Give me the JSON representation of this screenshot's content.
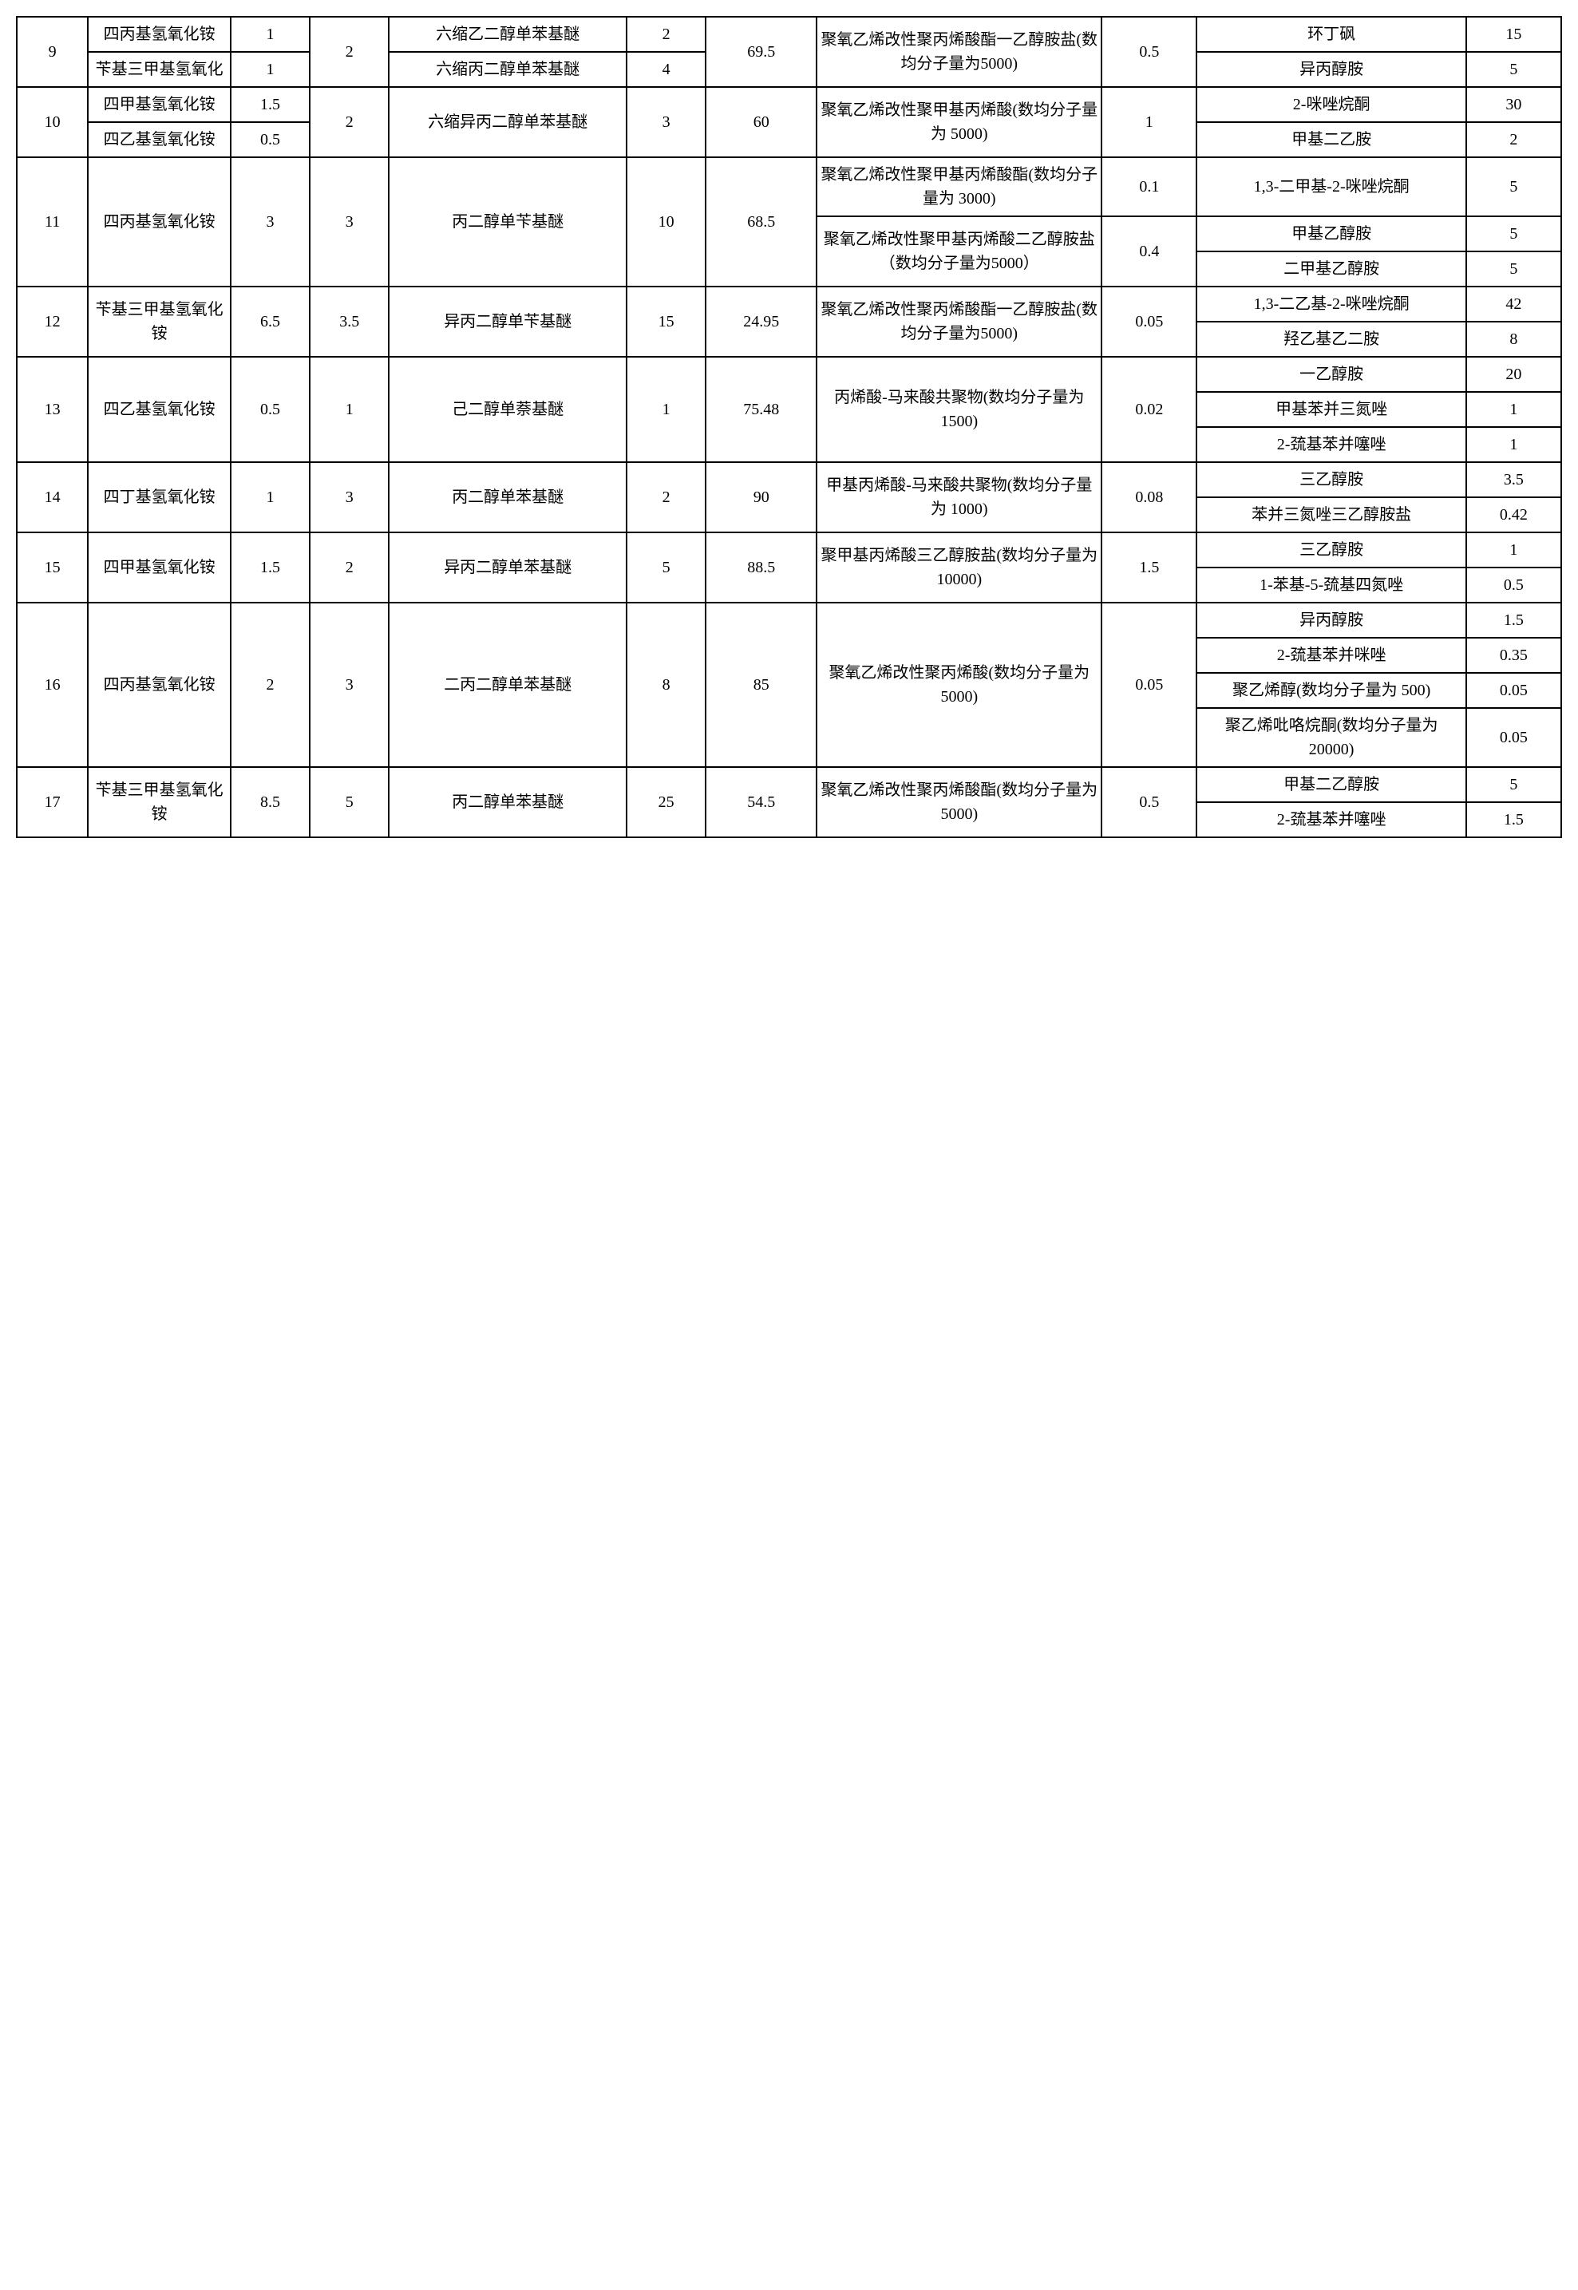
{
  "rows": {
    "r9": {
      "id": "9",
      "comp1a": "四丙基氢氧化铵",
      "v1a": "1",
      "comp1b": "苄基三甲基氢氧化",
      "v1b": "1",
      "v2": "2",
      "comp2a": "六缩乙二醇单苯基醚",
      "v3a": "2",
      "comp2b": "六缩丙二醇单苯基醚",
      "v3b": "4",
      "v4": "69.5",
      "comp3": "聚氧乙烯改性聚丙烯酸酯一乙醇胺盐(数均分子量为5000)",
      "v5": "0.5",
      "comp4a": "环丁砜",
      "v6a": "15",
      "comp4b": "异丙醇胺",
      "v6b": "5"
    },
    "r10": {
      "id": "10",
      "comp1a": "四甲基氢氧化铵",
      "v1a": "1.5",
      "comp1b": "四乙基氢氧化铵",
      "v1b": "0.5",
      "v2": "2",
      "comp2": "六缩异丙二醇单苯基醚",
      "v3": "3",
      "v4": "60",
      "comp3": "聚氧乙烯改性聚甲基丙烯酸(数均分子量为 5000)",
      "v5": "1",
      "comp4a": "2-咪唑烷酮",
      "v6a": "30",
      "comp4b": "甲基二乙胺",
      "v6b": "2"
    },
    "r11": {
      "id": "11",
      "comp1": "四丙基氢氧化铵",
      "v1": "3",
      "v2": "3",
      "comp2": "丙二醇单苄基醚",
      "v3": "10",
      "v4": "68.5",
      "comp3a": "聚氧乙烯改性聚甲基丙烯酸酯(数均分子量为 3000)",
      "v5a": "0.1",
      "comp3b": "聚氧乙烯改性聚甲基丙烯酸二乙醇胺盐（数均分子量为5000）",
      "v5b": "0.4",
      "comp4a": "1,3-二甲基-2-咪唑烷酮",
      "v6a": "5",
      "comp4b": "甲基乙醇胺",
      "v6b": "5",
      "comp4c": "二甲基乙醇胺",
      "v6c": "5"
    },
    "r12": {
      "id": "12",
      "comp1": "苄基三甲基氢氧化铵",
      "v1": "6.5",
      "v2": "3.5",
      "comp2": "异丙二醇单苄基醚",
      "v3": "15",
      "v4": "24.95",
      "comp3": "聚氧乙烯改性聚丙烯酸酯一乙醇胺盐(数均分子量为5000)",
      "v5": "0.05",
      "comp4a": "1,3-二乙基-2-咪唑烷酮",
      "v6a": "42",
      "comp4b": "羟乙基乙二胺",
      "v6b": "8"
    },
    "r13": {
      "id": "13",
      "comp1": "四乙基氢氧化铵",
      "v1": "0.5",
      "v2": "1",
      "comp2": "己二醇单萘基醚",
      "v3": "1",
      "v4": "75.48",
      "comp3": "丙烯酸-马来酸共聚物(数均分子量为 1500)",
      "v5": "0.02",
      "comp4a": "一乙醇胺",
      "v6a": "20",
      "comp4b": "甲基苯并三氮唑",
      "v6b": "1",
      "comp4c": "2-巯基苯并噻唑",
      "v6c": "1"
    },
    "r14": {
      "id": "14",
      "comp1": "四丁基氢氧化铵",
      "v1": "1",
      "v2": "3",
      "comp2": "丙二醇单苯基醚",
      "v3": "2",
      "v4": "90",
      "comp3": "甲基丙烯酸-马来酸共聚物(数均分子量为 1000)",
      "v5": "0.08",
      "comp4a": "三乙醇胺",
      "v6a": "3.5",
      "comp4b": "苯并三氮唑三乙醇胺盐",
      "v6b": "0.42"
    },
    "r15": {
      "id": "15",
      "comp1": "四甲基氢氧化铵",
      "v1": "1.5",
      "v2": "2",
      "comp2": "异丙二醇单苯基醚",
      "v3": "5",
      "v4": "88.5",
      "comp3": "聚甲基丙烯酸三乙醇胺盐(数均分子量为 10000)",
      "v5": "1.5",
      "comp4a": "三乙醇胺",
      "v6a": "1",
      "comp4b": "1-苯基-5-巯基四氮唑",
      "v6b": "0.5"
    },
    "r16": {
      "id": "16",
      "comp1": "四丙基氢氧化铵",
      "v1": "2",
      "v2": "3",
      "comp2": "二丙二醇单苯基醚",
      "v3": "8",
      "v4": "85",
      "comp3": "聚氧乙烯改性聚丙烯酸(数均分子量为 5000)",
      "v5": "0.05",
      "comp4a": "异丙醇胺",
      "v6a": "1.5",
      "comp4b": "2-巯基苯并咪唑",
      "v6b": "0.35",
      "comp4c": "聚乙烯醇(数均分子量为 500)",
      "v6c": "0.05",
      "comp4d": "聚乙烯吡咯烷酮(数均分子量为 20000)",
      "v6d": "0.05"
    },
    "r17": {
      "id": "17",
      "comp1": "苄基三甲基氢氧化铵",
      "v1": "8.5",
      "v2": "5",
      "comp2": "丙二醇单苯基醚",
      "v3": "25",
      "v4": "54.5",
      "comp3": "聚氧乙烯改性聚丙烯酸酯(数均分子量为 5000)",
      "v5": "0.5",
      "comp4a": "甲基二乙醇胺",
      "v6a": "5",
      "comp4b": "2-巯基苯并噻唑",
      "v6b": "1.5"
    }
  }
}
